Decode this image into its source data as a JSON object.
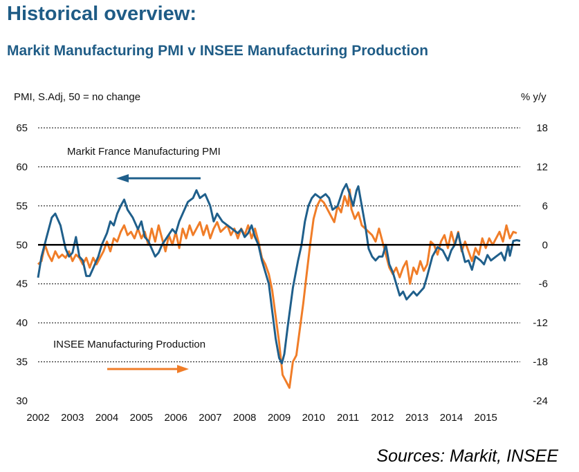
{
  "title": "Historical overview:",
  "subtitle": "Markit Manufacturing PMI v INSEE Manufacturing Production",
  "source": "Sources: Markit, INSEE",
  "colors": {
    "pmi": "#1f5f8b",
    "production": "#f07d28",
    "grid": "#000000",
    "title": "#1f5c86"
  },
  "chart_data": {
    "type": "line",
    "left_axis": {
      "label": "PMI, S.Adj, 50 = no change",
      "range": [
        30,
        65
      ],
      "ticks": [
        30,
        35,
        40,
        45,
        50,
        55,
        60,
        65
      ]
    },
    "right_axis": {
      "label": "% y/y",
      "range": [
        -24,
        18
      ],
      "ticks": [
        -24,
        -18,
        -12,
        -6,
        0,
        6,
        12,
        18
      ]
    },
    "x_axis": {
      "range": [
        2002,
        2016
      ],
      "ticks": [
        "2002",
        "2003",
        "2004",
        "2005",
        "2006",
        "2007",
        "2008",
        "2009",
        "2010",
        "2011",
        "2012",
        "2013",
        "2014",
        "2015"
      ]
    },
    "grid": "dotted horizontal",
    "series": [
      {
        "name": "Markit France Manufacturing PMI",
        "axis": "left",
        "annotation": "Markit France Manufacturing PMI",
        "points": [
          [
            2002.0,
            45.8
          ],
          [
            2002.1,
            48.5
          ],
          [
            2002.25,
            51.0
          ],
          [
            2002.4,
            53.5
          ],
          [
            2002.5,
            54.0
          ],
          [
            2002.65,
            52.5
          ],
          [
            2002.8,
            49.5
          ],
          [
            2002.9,
            48.5
          ],
          [
            2003.0,
            49.0
          ],
          [
            2003.1,
            51.0
          ],
          [
            2003.2,
            48.5
          ],
          [
            2003.3,
            48.0
          ],
          [
            2003.4,
            46.0
          ],
          [
            2003.5,
            46.0
          ],
          [
            2003.6,
            47.0
          ],
          [
            2003.75,
            48.5
          ],
          [
            2003.85,
            50.0
          ],
          [
            2004.0,
            51.5
          ],
          [
            2004.1,
            53.0
          ],
          [
            2004.2,
            52.5
          ],
          [
            2004.3,
            54.0
          ],
          [
            2004.4,
            55.0
          ],
          [
            2004.5,
            55.8
          ],
          [
            2004.6,
            54.5
          ],
          [
            2004.75,
            53.5
          ],
          [
            2004.9,
            52.0
          ],
          [
            2005.0,
            53.0
          ],
          [
            2005.1,
            51.0
          ],
          [
            2005.2,
            50.5
          ],
          [
            2005.3,
            49.5
          ],
          [
            2005.4,
            48.5
          ],
          [
            2005.5,
            49.0
          ],
          [
            2005.6,
            50.0
          ],
          [
            2005.75,
            51.0
          ],
          [
            2005.9,
            52.0
          ],
          [
            2006.0,
            51.5
          ],
          [
            2006.1,
            53.0
          ],
          [
            2006.2,
            54.0
          ],
          [
            2006.35,
            55.5
          ],
          [
            2006.5,
            56.0
          ],
          [
            2006.6,
            57.0
          ],
          [
            2006.7,
            56.0
          ],
          [
            2006.85,
            56.5
          ],
          [
            2007.0,
            55.0
          ],
          [
            2007.1,
            53.0
          ],
          [
            2007.2,
            54.0
          ],
          [
            2007.35,
            53.0
          ],
          [
            2007.5,
            52.5
          ],
          [
            2007.65,
            52.0
          ],
          [
            2007.8,
            51.5
          ],
          [
            2007.9,
            52.0
          ],
          [
            2008.0,
            51.0
          ],
          [
            2008.1,
            51.5
          ],
          [
            2008.2,
            52.5
          ],
          [
            2008.3,
            51.0
          ],
          [
            2008.4,
            50.0
          ],
          [
            2008.5,
            48.0
          ],
          [
            2008.6,
            46.5
          ],
          [
            2008.7,
            45.0
          ],
          [
            2008.8,
            41.5
          ],
          [
            2008.9,
            38.0
          ],
          [
            2009.0,
            35.5
          ],
          [
            2009.08,
            34.8
          ],
          [
            2009.15,
            36.0
          ],
          [
            2009.25,
            39.5
          ],
          [
            2009.4,
            44.5
          ],
          [
            2009.55,
            48.0
          ],
          [
            2009.65,
            50.0
          ],
          [
            2009.75,
            53.0
          ],
          [
            2009.85,
            55.0
          ],
          [
            2009.95,
            56.0
          ],
          [
            2010.05,
            56.5
          ],
          [
            2010.2,
            56.0
          ],
          [
            2010.35,
            56.5
          ],
          [
            2010.45,
            56.0
          ],
          [
            2010.55,
            54.5
          ],
          [
            2010.7,
            55.0
          ],
          [
            2010.85,
            57.0
          ],
          [
            2010.95,
            57.8
          ],
          [
            2011.05,
            56.5
          ],
          [
            2011.15,
            55.0
          ],
          [
            2011.25,
            57.0
          ],
          [
            2011.3,
            57.5
          ],
          [
            2011.4,
            55.0
          ],
          [
            2011.5,
            52.5
          ],
          [
            2011.6,
            49.5
          ],
          [
            2011.7,
            48.5
          ],
          [
            2011.8,
            48.0
          ],
          [
            2011.9,
            48.5
          ],
          [
            2012.0,
            48.5
          ],
          [
            2012.1,
            50.0
          ],
          [
            2012.2,
            47.5
          ],
          [
            2012.3,
            46.5
          ],
          [
            2012.4,
            45.0
          ],
          [
            2012.5,
            43.5
          ],
          [
            2012.6,
            44.0
          ],
          [
            2012.7,
            43.0
          ],
          [
            2012.8,
            43.5
          ],
          [
            2012.9,
            44.0
          ],
          [
            2013.0,
            43.5
          ],
          [
            2013.1,
            44.0
          ],
          [
            2013.2,
            44.5
          ],
          [
            2013.3,
            46.0
          ],
          [
            2013.45,
            48.5
          ],
          [
            2013.6,
            49.7
          ],
          [
            2013.75,
            49.3
          ],
          [
            2013.9,
            48.0
          ],
          [
            2014.0,
            49.3
          ],
          [
            2014.1,
            50.0
          ],
          [
            2014.2,
            51.5
          ],
          [
            2014.3,
            49.5
          ],
          [
            2014.4,
            47.8
          ],
          [
            2014.5,
            48.0
          ],
          [
            2014.6,
            46.8
          ],
          [
            2014.7,
            48.5
          ],
          [
            2014.85,
            48.0
          ],
          [
            2014.95,
            47.5
          ],
          [
            2015.05,
            48.7
          ],
          [
            2015.15,
            48.0
          ],
          [
            2015.3,
            48.5
          ],
          [
            2015.45,
            49.0
          ],
          [
            2015.55,
            48.0
          ],
          [
            2015.65,
            50.0
          ],
          [
            2015.7,
            48.6
          ],
          [
            2015.8,
            50.5
          ],
          [
            2015.9,
            50.6
          ],
          [
            2016.0,
            50.5
          ]
        ]
      },
      {
        "name": "INSEE Manufacturing Production",
        "axis": "right",
        "annotation": "INSEE Manufacturing Production",
        "points": [
          [
            2002.0,
            -3.0
          ],
          [
            2002.1,
            -2.5
          ],
          [
            2002.2,
            0.0
          ],
          [
            2002.3,
            -1.5
          ],
          [
            2002.4,
            -2.5
          ],
          [
            2002.5,
            -1.0
          ],
          [
            2002.6,
            -2.0
          ],
          [
            2002.7,
            -1.5
          ],
          [
            2002.8,
            -2.0
          ],
          [
            2002.9,
            -1.0
          ],
          [
            2003.0,
            -2.5
          ],
          [
            2003.1,
            -1.5
          ],
          [
            2003.2,
            -2.0
          ],
          [
            2003.3,
            -3.0
          ],
          [
            2003.4,
            -2.0
          ],
          [
            2003.5,
            -3.5
          ],
          [
            2003.6,
            -2.0
          ],
          [
            2003.7,
            -3.0
          ],
          [
            2003.8,
            -2.0
          ],
          [
            2003.9,
            -1.0
          ],
          [
            2004.0,
            0.5
          ],
          [
            2004.1,
            -1.0
          ],
          [
            2004.2,
            1.0
          ],
          [
            2004.3,
            0.5
          ],
          [
            2004.4,
            2.0
          ],
          [
            2004.5,
            3.0
          ],
          [
            2004.6,
            1.5
          ],
          [
            2004.7,
            2.0
          ],
          [
            2004.8,
            1.0
          ],
          [
            2004.9,
            2.5
          ],
          [
            2005.0,
            1.0
          ],
          [
            2005.1,
            2.0
          ],
          [
            2005.2,
            0.0
          ],
          [
            2005.3,
            2.5
          ],
          [
            2005.4,
            0.5
          ],
          [
            2005.5,
            3.0
          ],
          [
            2005.6,
            1.0
          ],
          [
            2005.7,
            -1.0
          ],
          [
            2005.8,
            1.5
          ],
          [
            2005.9,
            0.0
          ],
          [
            2006.0,
            2.0
          ],
          [
            2006.1,
            -0.5
          ],
          [
            2006.2,
            2.5
          ],
          [
            2006.3,
            1.0
          ],
          [
            2006.4,
            3.0
          ],
          [
            2006.5,
            1.5
          ],
          [
            2006.6,
            2.5
          ],
          [
            2006.7,
            3.5
          ],
          [
            2006.8,
            1.5
          ],
          [
            2006.9,
            3.0
          ],
          [
            2007.0,
            1.0
          ],
          [
            2007.1,
            2.5
          ],
          [
            2007.2,
            3.5
          ],
          [
            2007.3,
            2.0
          ],
          [
            2007.4,
            2.5
          ],
          [
            2007.5,
            3.0
          ],
          [
            2007.6,
            1.5
          ],
          [
            2007.7,
            2.5
          ],
          [
            2007.8,
            1.0
          ],
          [
            2007.9,
            2.5
          ],
          [
            2008.0,
            1.5
          ],
          [
            2008.1,
            3.0
          ],
          [
            2008.2,
            1.0
          ],
          [
            2008.3,
            2.5
          ],
          [
            2008.4,
            0.5
          ],
          [
            2008.5,
            -2.0
          ],
          [
            2008.6,
            -3.0
          ],
          [
            2008.7,
            -4.5
          ],
          [
            2008.8,
            -7.0
          ],
          [
            2008.9,
            -11.0
          ],
          [
            2009.0,
            -15.0
          ],
          [
            2009.1,
            -20.0
          ],
          [
            2009.2,
            -21.0
          ],
          [
            2009.3,
            -22.0
          ],
          [
            2009.4,
            -18.0
          ],
          [
            2009.5,
            -17.0
          ],
          [
            2009.6,
            -13.0
          ],
          [
            2009.7,
            -9.0
          ],
          [
            2009.8,
            -4.5
          ],
          [
            2009.9,
            0.0
          ],
          [
            2010.0,
            4.0
          ],
          [
            2010.1,
            6.0
          ],
          [
            2010.2,
            7.0
          ],
          [
            2010.3,
            6.5
          ],
          [
            2010.4,
            5.5
          ],
          [
            2010.5,
            4.5
          ],
          [
            2010.6,
            3.5
          ],
          [
            2010.7,
            6.0
          ],
          [
            2010.8,
            5.0
          ],
          [
            2010.9,
            7.5
          ],
          [
            2011.0,
            6.0
          ],
          [
            2011.05,
            8.5
          ],
          [
            2011.1,
            5.5
          ],
          [
            2011.2,
            4.0
          ],
          [
            2011.3,
            5.0
          ],
          [
            2011.4,
            3.0
          ],
          [
            2011.5,
            2.5
          ],
          [
            2011.6,
            2.0
          ],
          [
            2011.7,
            1.5
          ],
          [
            2011.8,
            0.5
          ],
          [
            2011.9,
            2.5
          ],
          [
            2012.0,
            0.5
          ],
          [
            2012.1,
            -1.5
          ],
          [
            2012.2,
            -3.5
          ],
          [
            2012.3,
            -4.5
          ],
          [
            2012.4,
            -3.5
          ],
          [
            2012.5,
            -5.0
          ],
          [
            2012.6,
            -3.5
          ],
          [
            2012.7,
            -2.5
          ],
          [
            2012.8,
            -6.0
          ],
          [
            2012.9,
            -3.5
          ],
          [
            2013.0,
            -4.5
          ],
          [
            2013.1,
            -2.5
          ],
          [
            2013.2,
            -4.0
          ],
          [
            2013.3,
            -3.0
          ],
          [
            2013.4,
            0.5
          ],
          [
            2013.5,
            0.0
          ],
          [
            2013.6,
            -1.5
          ],
          [
            2013.7,
            0.5
          ],
          [
            2013.8,
            1.5
          ],
          [
            2013.9,
            -0.5
          ],
          [
            2014.0,
            2.0
          ],
          [
            2014.1,
            0.0
          ],
          [
            2014.2,
            2.0
          ],
          [
            2014.3,
            -1.0
          ],
          [
            2014.4,
            0.5
          ],
          [
            2014.5,
            -1.0
          ],
          [
            2014.6,
            -2.5
          ],
          [
            2014.7,
            -0.5
          ],
          [
            2014.8,
            -1.5
          ],
          [
            2014.9,
            1.0
          ],
          [
            2015.0,
            -0.5
          ],
          [
            2015.1,
            1.0
          ],
          [
            2015.2,
            0.0
          ],
          [
            2015.3,
            1.0
          ],
          [
            2015.4,
            2.0
          ],
          [
            2015.5,
            0.5
          ],
          [
            2015.6,
            3.0
          ],
          [
            2015.7,
            1.0
          ],
          [
            2015.8,
            2.0
          ],
          [
            2015.9,
            1.8
          ]
        ]
      }
    ]
  }
}
